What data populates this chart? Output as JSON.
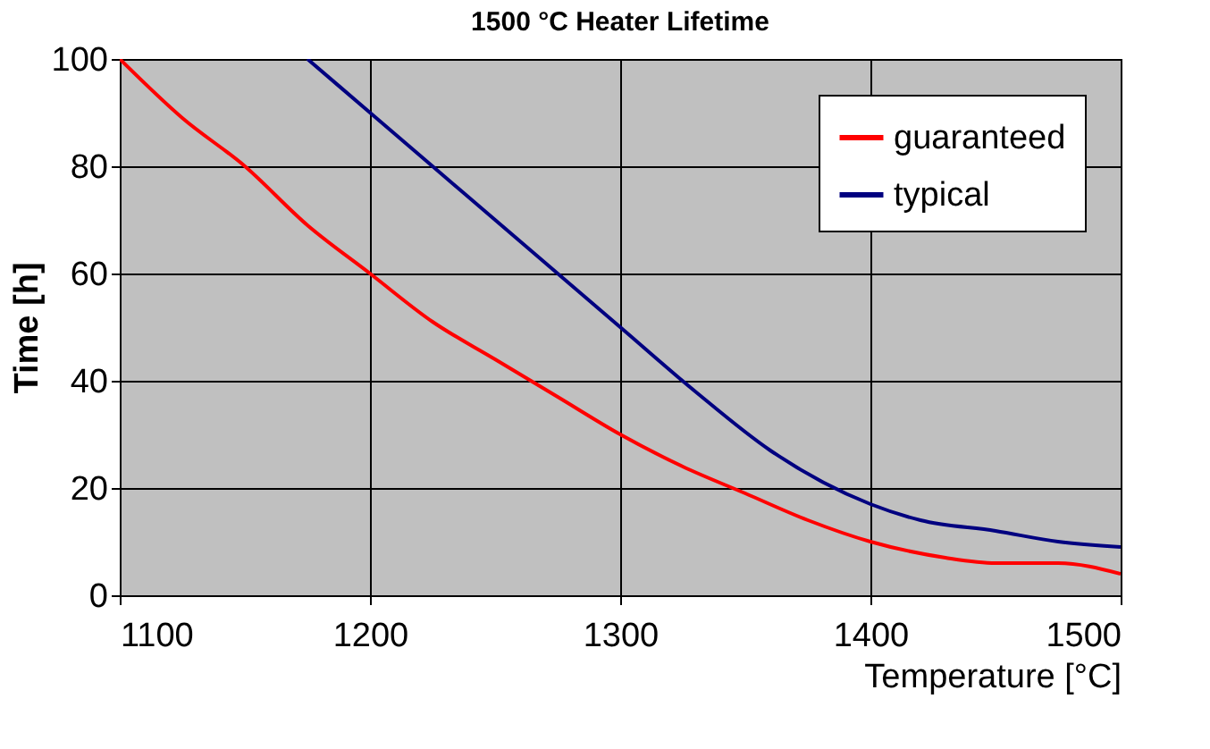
{
  "chart_data": {
    "type": "line",
    "title": "1500 °C Heater Lifetime",
    "xlabel": "Temperature [°C]",
    "ylabel": "Time [h]",
    "xlim": [
      1100,
      1500
    ],
    "xticks": [
      1100,
      1200,
      1300,
      1400,
      1500
    ],
    "ylim": [
      0,
      100
    ],
    "yticks": [
      0,
      20,
      40,
      60,
      80,
      100
    ],
    "grid": true,
    "legend": "top right",
    "marker": "none",
    "line_style": "solid",
    "series": [
      {
        "name": "guaranteed",
        "color": "#ff0000",
        "x": [
          1100,
          1125,
          1150,
          1175,
          1200,
          1225,
          1250,
          1275,
          1300,
          1325,
          1350,
          1375,
          1400,
          1430,
          1450,
          1475,
          1500
        ],
        "values": [
          100,
          89,
          80,
          69,
          60,
          51,
          44,
          37,
          30,
          24,
          19,
          14,
          10,
          7,
          6,
          6,
          4
        ]
      },
      {
        "name": "typical",
        "color": "#000080",
        "x": [
          1175,
          1200,
          1225,
          1250,
          1275,
          1300,
          1330,
          1360,
          1400,
          1420,
          1450,
          1475,
          1500
        ],
        "values": [
          100,
          90,
          80,
          70,
          60,
          50,
          38,
          27,
          17,
          14,
          12,
          10,
          9
        ]
      }
    ]
  }
}
